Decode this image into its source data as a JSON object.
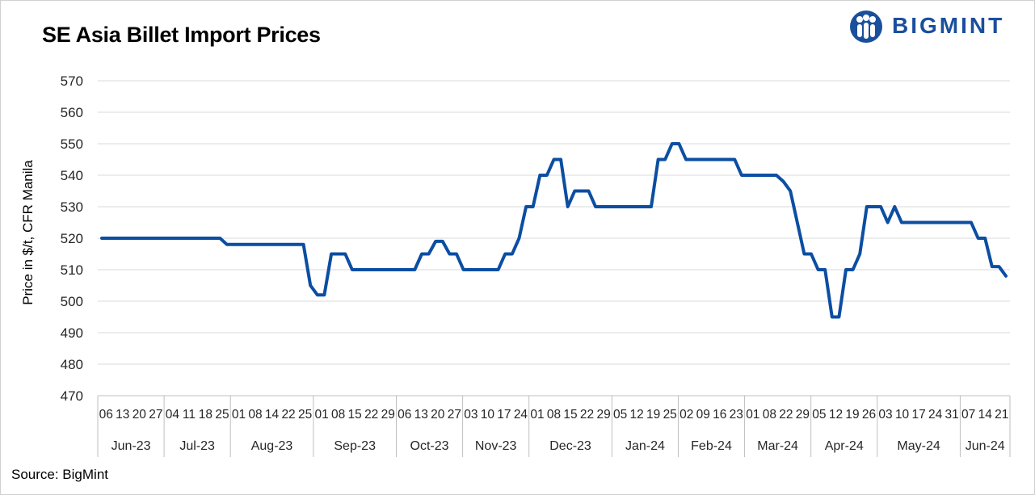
{
  "title": "SE Asia Billet Import Prices",
  "brand": "BIGMINT",
  "source": "Source: BigMint",
  "colors": {
    "line": "#0b4ea2",
    "grid": "#d9d9d9",
    "brand": "#1a4f9c"
  },
  "chart_data": {
    "type": "line",
    "title": "SE Asia Billet Import Prices",
    "ylabel": "Price in $/t, CFR Manila",
    "ylim": [
      470,
      570
    ],
    "yticks": [
      470,
      480,
      490,
      500,
      510,
      520,
      530,
      540,
      550,
      560,
      570
    ],
    "grid": "horizontal",
    "legend": "none",
    "months": [
      {
        "label": "Jun-23",
        "days": [
          "06",
          "13",
          "20",
          "27"
        ]
      },
      {
        "label": "Jul-23",
        "days": [
          "04",
          "11",
          "18",
          "25"
        ]
      },
      {
        "label": "Aug-23",
        "days": [
          "01",
          "08",
          "14",
          "22",
          "25"
        ]
      },
      {
        "label": "Sep-23",
        "days": [
          "01",
          "08",
          "15",
          "22",
          "29"
        ]
      },
      {
        "label": "Oct-23",
        "days": [
          "06",
          "13",
          "20",
          "27"
        ]
      },
      {
        "label": "Nov-23",
        "days": [
          "03",
          "10",
          "17",
          "24"
        ]
      },
      {
        "label": "Dec-23",
        "days": [
          "01",
          "08",
          "15",
          "22",
          "29"
        ]
      },
      {
        "label": "Jan-24",
        "days": [
          "05",
          "12",
          "19",
          "25"
        ]
      },
      {
        "label": "Feb-24",
        "days": [
          "02",
          "09",
          "16",
          "23"
        ]
      },
      {
        "label": "Mar-24",
        "days": [
          "01",
          "08",
          "22",
          "29"
        ]
      },
      {
        "label": "Apr-24",
        "days": [
          "05",
          "12",
          "19",
          "26"
        ]
      },
      {
        "label": "May-24",
        "days": [
          "03",
          "10",
          "17",
          "24",
          "31"
        ]
      },
      {
        "label": "Jun-24",
        "days": [
          "07",
          "14",
          "21"
        ]
      }
    ],
    "series": [
      {
        "values": [
          520,
          520,
          520,
          520,
          520,
          520,
          520,
          520,
          520,
          520,
          520,
          520,
          520,
          520,
          520,
          520,
          520,
          520,
          518,
          518,
          518,
          518,
          518,
          518,
          518,
          518,
          518,
          518,
          518,
          518,
          505,
          502,
          502,
          515,
          515,
          515,
          510,
          510,
          510,
          510,
          510,
          510,
          510,
          510,
          510,
          510,
          515,
          515,
          519,
          519,
          515,
          515,
          510,
          510,
          510,
          510,
          510,
          510,
          515,
          515,
          520,
          530,
          530,
          540,
          540,
          545,
          545,
          530,
          535,
          535,
          535,
          530,
          530,
          530,
          530,
          530,
          530,
          530,
          530,
          530,
          545,
          545,
          550,
          550,
          545,
          545,
          545,
          545,
          545,
          545,
          545,
          545,
          540,
          540,
          540,
          540,
          540,
          540,
          538,
          535,
          525,
          515,
          515,
          510,
          510,
          495,
          495,
          510,
          510,
          515,
          530,
          530,
          530,
          525,
          530,
          525,
          525,
          525,
          525,
          525,
          525,
          525,
          525,
          525,
          525,
          525,
          520,
          520,
          511,
          511,
          508
        ]
      }
    ]
  }
}
